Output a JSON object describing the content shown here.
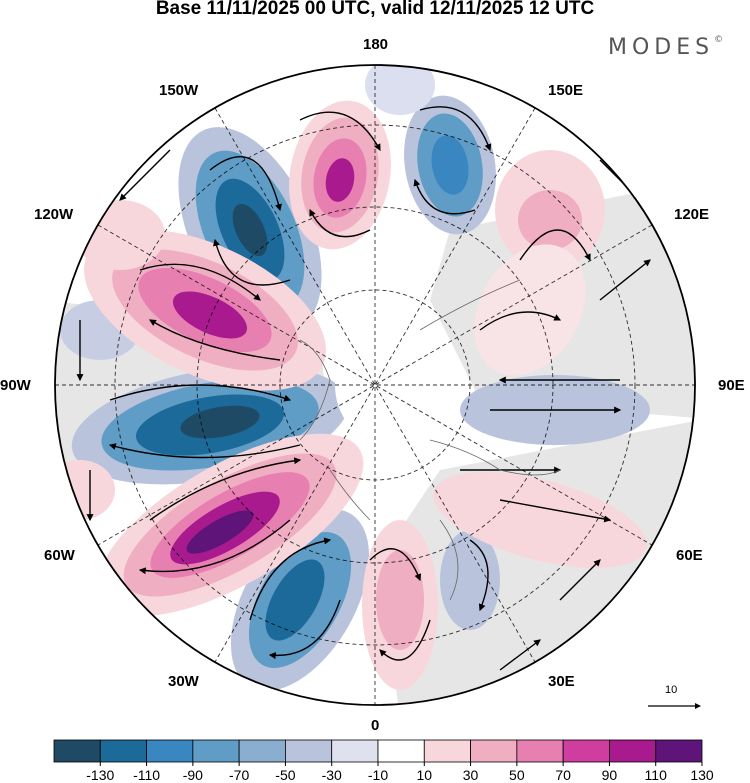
{
  "title": "Base 11/11/2025 00 UTC, valid 12/11/2025 12 UTC",
  "brand": "MODES",
  "brand_mark": "©",
  "map": {
    "projection": "north-polar-stereographic",
    "longitude_labels": {
      "top": "180",
      "top_right": "150E",
      "right_upper": "120E",
      "right": "90E",
      "right_lower": "60E",
      "bottom_right": "30E",
      "bottom": "0",
      "bottom_left": "30W",
      "left_lower": "60W",
      "left": "90W",
      "left_upper": "120W",
      "top_left": "150W"
    },
    "vector_reference": "10",
    "colors": {
      "neg_strong": "#1d4d6c",
      "neg_mid": "#3d86b8",
      "neg_light": "#b9c3dc",
      "pos_light": "#f2c4cc",
      "pos_mid": "#e07ba8",
      "pos_strong": "#6a1a7c",
      "land": "#e6e6e6"
    }
  },
  "colorbar": {
    "ticks": [
      "-130",
      "-110",
      "-90",
      "-70",
      "-50",
      "-30",
      "-10",
      "10",
      "30",
      "50",
      "70",
      "90",
      "110",
      "130"
    ],
    "colors": [
      "#1e4a66",
      "#1b6a9a",
      "#3a86c0",
      "#5f9cc6",
      "#8aaed0",
      "#b9c3dc",
      "#dfe2ee",
      "#ffffff",
      "#f8d7dc",
      "#f0aec3",
      "#e77fb0",
      "#cf3d9e",
      "#a81a8e",
      "#5e1478"
    ]
  }
}
